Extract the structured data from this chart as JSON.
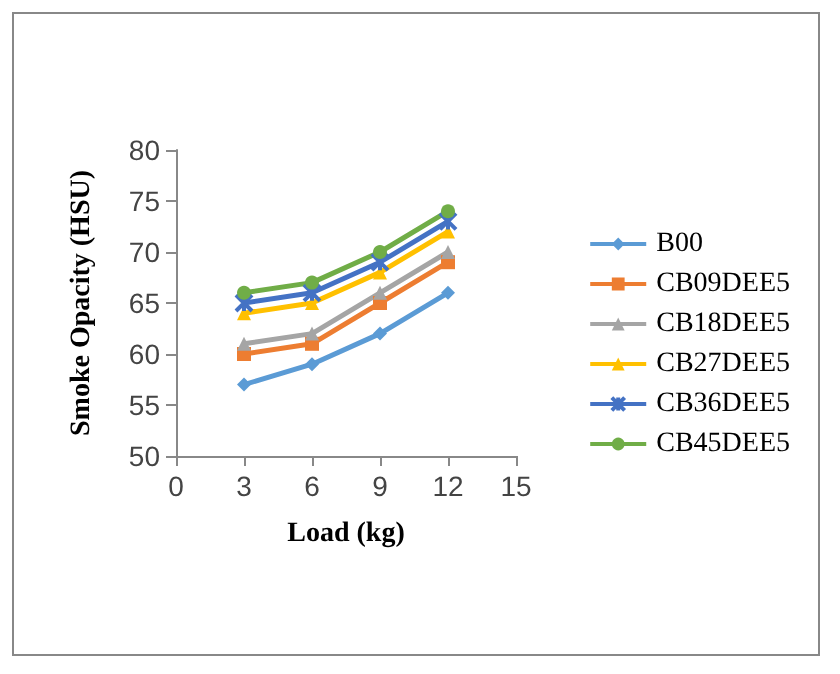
{
  "chart_data": {
    "type": "line",
    "xlabel": "Load (kg)",
    "ylabel": "Smoke Opacity (HSU)",
    "x": [
      3,
      6,
      9,
      12
    ],
    "xlim": [
      0,
      15
    ],
    "xticks": [
      0,
      3,
      6,
      9,
      12,
      15
    ],
    "ylim": [
      50,
      80
    ],
    "yticks": [
      50,
      55,
      60,
      65,
      70,
      75,
      80
    ],
    "grid": false,
    "legend": "right",
    "series": [
      {
        "name": "B00",
        "color": "#5b9bd5",
        "marker": "diamond",
        "values": [
          57,
          59,
          62,
          66
        ]
      },
      {
        "name": "CB09DEE5",
        "color": "#ed7d31",
        "marker": "square",
        "values": [
          60,
          61,
          65,
          69
        ]
      },
      {
        "name": "CB18DEE5",
        "color": "#a5a5a5",
        "marker": "triangle",
        "values": [
          61,
          62,
          66,
          70
        ]
      },
      {
        "name": "CB27DEE5",
        "color": "#ffc000",
        "marker": "triangle",
        "values": [
          64,
          65,
          68,
          72
        ]
      },
      {
        "name": "CB36DEE5",
        "color": "#4472c4",
        "marker": "cross",
        "values": [
          65,
          66,
          69,
          73
        ]
      },
      {
        "name": "CB45DEE5",
        "color": "#70ad47",
        "marker": "circle",
        "values": [
          66,
          67,
          70,
          74
        ]
      }
    ]
  }
}
